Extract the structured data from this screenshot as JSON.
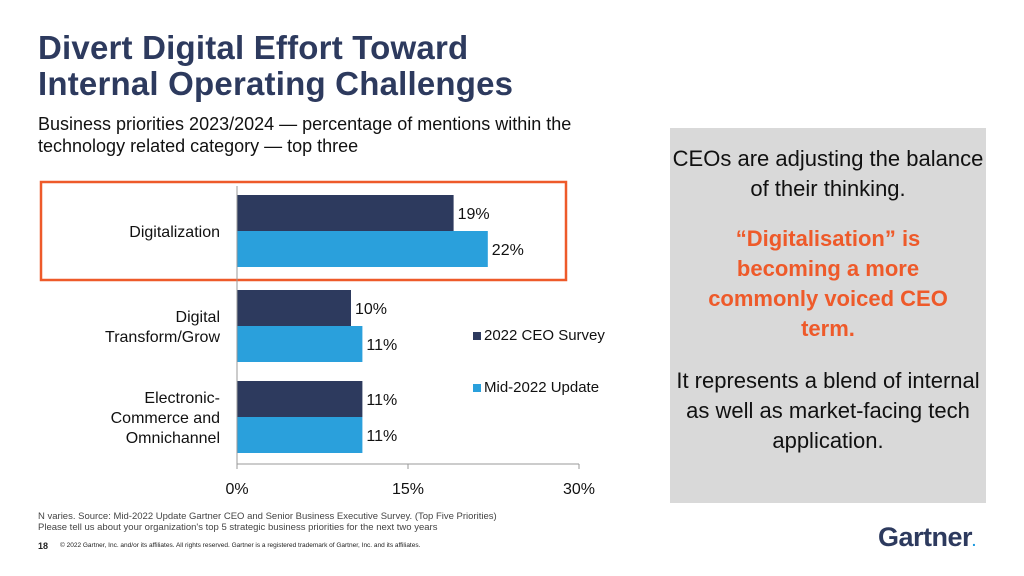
{
  "slide": {
    "title_line1": "Divert Digital Effort Toward",
    "title_line2": "Internal Operating Challenges",
    "subtitle": "Business priorities 2023/2024 — percentage of mentions within the technology related category — top three"
  },
  "chart_data": {
    "type": "bar",
    "orientation": "horizontal",
    "categories": [
      [
        "Digitalization"
      ],
      [
        "Digital",
        "Transform/Grow"
      ],
      [
        "Electronic-",
        "Commerce and",
        "Omnichannel"
      ]
    ],
    "series": [
      {
        "name": "2022 CEO Survey",
        "values": [
          19,
          10,
          11
        ],
        "color": "#2d3a5e"
      },
      {
        "name": "Mid-2022 Update",
        "values": [
          22,
          11,
          11
        ],
        "color": "#2aa0dc"
      }
    ],
    "value_suffix": "%",
    "xlim": [
      0,
      30
    ],
    "xticks": [
      0,
      15,
      30
    ],
    "xtick_labels": [
      "0%",
      "15%",
      "30%"
    ],
    "grid": false,
    "legend_position": "right",
    "highlighted_category": "Digitalization",
    "highlight_color": "#ee5a2a"
  },
  "callout": {
    "text1": "CEOs are adjusting the balance of their thinking.",
    "text2": "“Digitalisation” is becoming a more commonly voiced CEO term.",
    "text3": "It represents a blend of internal as well as market-facing tech application.",
    "accent_color": "#ee5a2a"
  },
  "footer": {
    "source_line1": "N varies. Source: Mid-2022 Update Gartner CEO and Senior Business Executive Survey. (Top Five Priorities)",
    "source_line2": "Please tell us about your organization's top 5 strategic business priorities for the next two years",
    "page_number": "18",
    "copyright": "© 2022 Gartner, Inc. and/or its affiliates. All rights reserved. Gartner is a registered trademark of Gartner, Inc. and its affiliates.",
    "logo_text": "Gartner",
    "logo_mark": "."
  }
}
